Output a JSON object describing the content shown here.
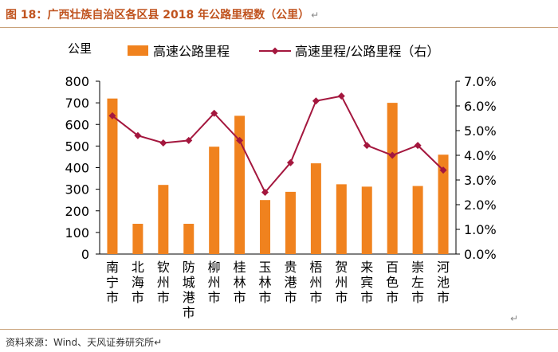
{
  "header": {
    "title": "图 18：广西壮族自治区各区县 2018 年公路里程数（公里）",
    "return_mark": "↵"
  },
  "footer": {
    "source": "资料来源：Wind、天风证券研究所",
    "return_mark": "↵"
  },
  "stray_mark": "↵",
  "colors": {
    "bar": "#f0821e",
    "line": "#a4173e",
    "title": "#c0531e",
    "rule": "#c9a27a"
  },
  "chart_data": {
    "type": "bar",
    "y_unit_label": "公里",
    "categories": [
      "南宁市",
      "北海市",
      "钦州市",
      "防城港市",
      "柳州市",
      "桂林市",
      "玉林市",
      "贵港市",
      "梧州市",
      "贺州市",
      "来宾市",
      "百色市",
      "崇左市",
      "河池市"
    ],
    "series": [
      {
        "name": "高速公路里程",
        "type": "bar",
        "axis": "left",
        "values": [
          720,
          140,
          320,
          140,
          497,
          640,
          250,
          288,
          420,
          323,
          312,
          700,
          315,
          460
        ]
      },
      {
        "name": "高速里程/公路里程（右）",
        "type": "line",
        "axis": "right",
        "marker": "diamond",
        "values": [
          0.056,
          0.048,
          0.045,
          0.046,
          0.057,
          0.046,
          0.025,
          0.037,
          0.062,
          0.064,
          0.044,
          0.04,
          0.044,
          0.034
        ]
      }
    ],
    "y_left": {
      "min": 0,
      "max": 800,
      "ticks": [
        "0",
        "100",
        "200",
        "300",
        "400",
        "500",
        "600",
        "700",
        "800"
      ]
    },
    "y_right": {
      "min": 0,
      "max": 0.07,
      "ticks": [
        "0.0%",
        "1.0%",
        "2.0%",
        "3.0%",
        "4.0%",
        "5.0%",
        "6.0%",
        "7.0%"
      ]
    },
    "legend_position": "top",
    "grid": false
  }
}
